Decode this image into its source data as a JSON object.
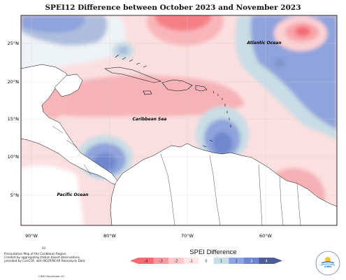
{
  "title": "SPEI12 Difference between October 2023 and November 2023",
  "map": {
    "x_ticks": [
      "90°W",
      "80°W",
      "70°W",
      "60°W"
    ],
    "y_ticks": [
      "25°N",
      "20°N",
      "15°N",
      "10°N",
      "5°N"
    ],
    "region_labels": {
      "atlantic": "Atlantic Ocean",
      "caribbean": "Caribbean Sea",
      "pacific": "Pacific Ocean"
    }
  },
  "legend": {
    "title": "SPEI Difference",
    "ticks": [
      "-4",
      "-3",
      "-2",
      "-1",
      "0",
      "1",
      "2",
      "3",
      "4"
    ],
    "colors": [
      "#f36a73",
      "#f79a9f",
      "#fac9cb",
      "#fde6e7",
      "#ffffff",
      "#c9dde5",
      "#8fa5e0",
      "#6f86cf",
      "#4e5c93"
    ]
  },
  "footer": {
    "number": "20",
    "line1": "Precipitation Map of the Caribbean Region.",
    "line2": "Created by aggregating station based observations,",
    "line3": "provided by CariCOF, with NCEP/NCAR Reanalysis Data.",
    "id": "CIMH November-20"
  },
  "logo": {
    "text": "CIMH"
  }
}
